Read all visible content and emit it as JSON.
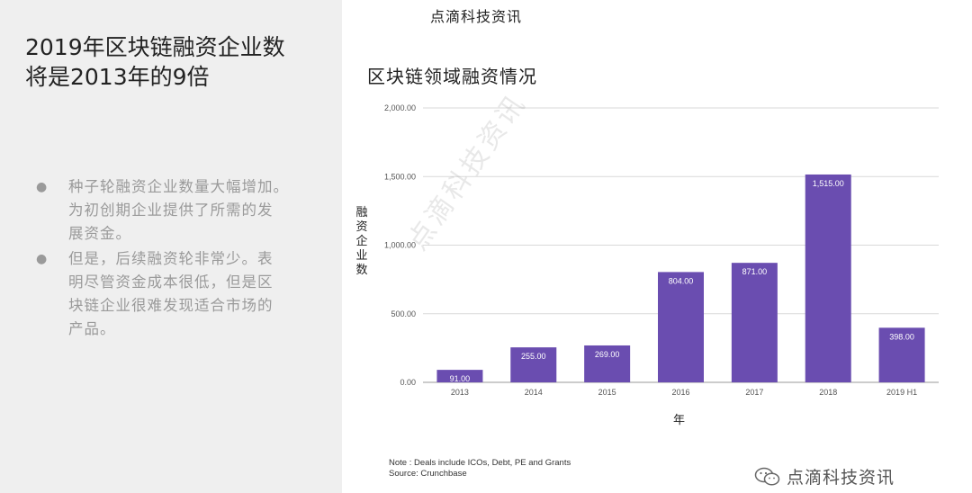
{
  "slide": {
    "title_line1": "2019年区块链融资企业数",
    "title_line2": "将是2013年的9倍",
    "bullets": [
      {
        "lines": [
          "种子轮融资企业数量大幅增加。",
          "为初创期企业提供了所需的发",
          "展资金。"
        ]
      },
      {
        "lines": [
          "但是，后续融资轮非常少。表",
          "明尽管资金成本很低，但是区",
          "块链企业很难发现适合市场的",
          "产品。"
        ]
      }
    ],
    "bullet_glyph": "●"
  },
  "brand_top": "点滴科技资讯",
  "brand_bottom": "点滴科技资讯",
  "watermark": "点滴科技资讯",
  "note_line1": "Note : Deals include ICOs, Debt, PE and Grants",
  "note_line2": "Source:  Crunchbase",
  "icons": {
    "brand": "wechat-icon"
  },
  "colors": {
    "bar": "#6a4db0",
    "grid": "#d9d9d9",
    "panel": "#efefef"
  },
  "chart_data": {
    "type": "bar",
    "title": "区块链领域融资情况",
    "xlabel": "年",
    "ylabel": [
      "融",
      "资",
      "企",
      "业",
      "数"
    ],
    "categories": [
      "2013",
      "2014",
      "2015",
      "2016",
      "2017",
      "2018",
      "2019 H1"
    ],
    "values": [
      91,
      255,
      269,
      804,
      871,
      1515,
      398
    ],
    "value_labels": [
      "91.00",
      "255.00",
      "269.00",
      "804.00",
      "871.00",
      "1,515.00",
      "398.00"
    ],
    "yticks": [
      0,
      500,
      1000,
      1500,
      2000
    ],
    "ytick_labels": [
      "0.00",
      "500.00",
      "1,000.00",
      "1,500.00",
      "2,000.00"
    ],
    "ylim": [
      0,
      2000
    ],
    "grid": true,
    "legend": "none"
  }
}
